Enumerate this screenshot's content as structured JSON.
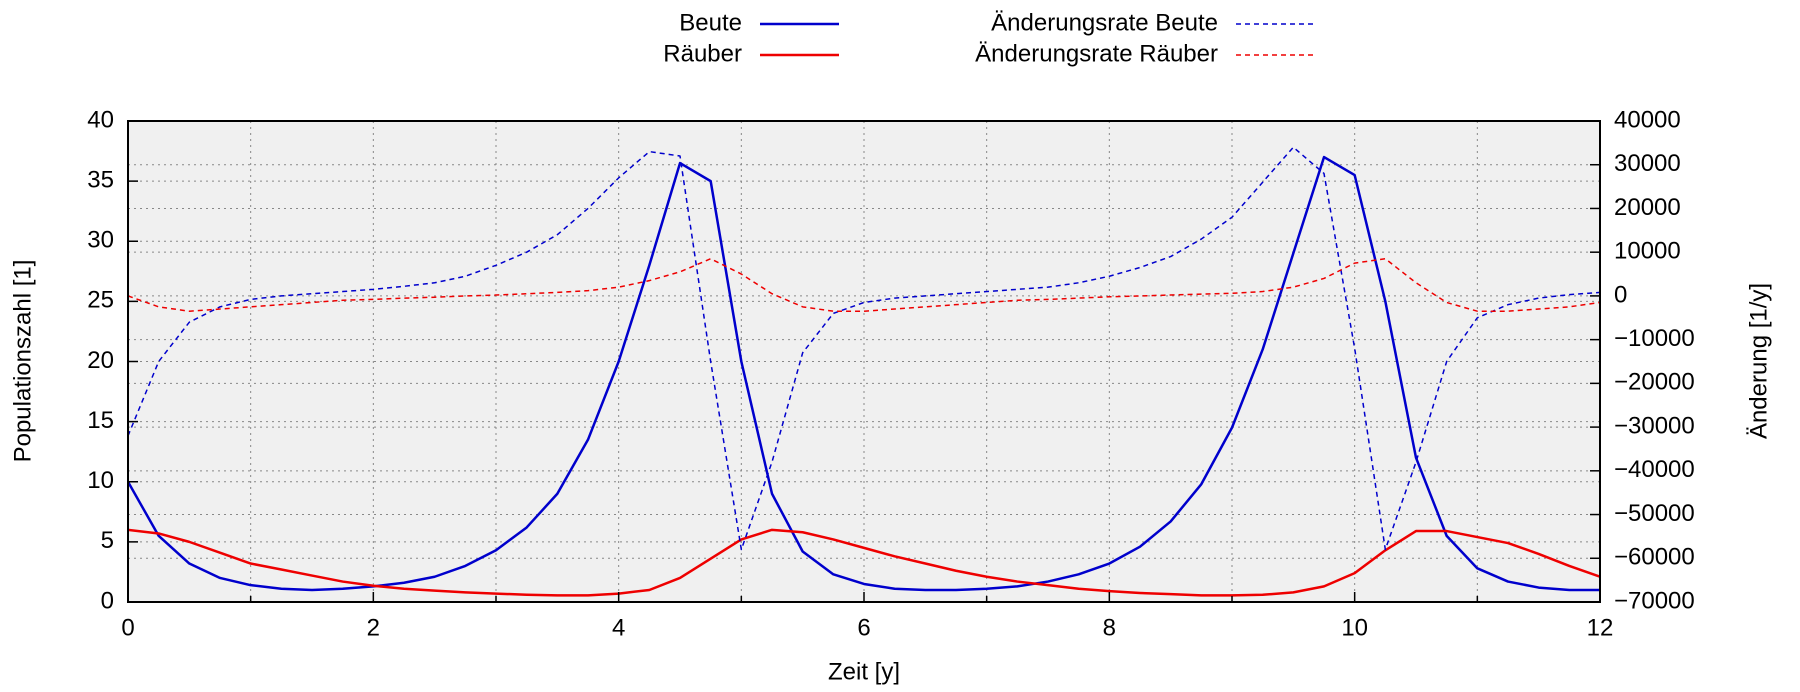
{
  "chart_data": {
    "type": "line",
    "xlabel": "Zeit [y]",
    "ylabel": "Populationszahl [1]",
    "y2label": "Änderung [1/y]",
    "x": [
      0,
      0.25,
      0.5,
      0.75,
      1,
      1.25,
      1.5,
      1.75,
      2,
      2.25,
      2.5,
      2.75,
      3,
      3.25,
      3.5,
      3.75,
      4,
      4.25,
      4.5,
      4.75,
      5,
      5.25,
      5.5,
      5.75,
      6,
      6.25,
      6.5,
      6.75,
      7,
      7.25,
      7.5,
      7.75,
      8,
      8.25,
      8.5,
      8.75,
      9,
      9.25,
      9.5,
      9.75,
      10,
      10.25,
      10.5,
      10.75,
      11,
      11.25,
      11.5,
      11.75,
      12
    ],
    "series": [
      {
        "name": "Beute",
        "color": "#0000cc",
        "dashed": false,
        "axis": "y",
        "values": [
          10,
          5.5,
          3.2,
          2.0,
          1.4,
          1.1,
          1.0,
          1.1,
          1.3,
          1.6,
          2.1,
          3.0,
          4.3,
          6.2,
          9.0,
          13.5,
          20,
          28,
          36.5,
          35,
          20,
          9,
          4.2,
          2.3,
          1.5,
          1.1,
          1.0,
          1.0,
          1.1,
          1.3,
          1.7,
          2.3,
          3.2,
          4.6,
          6.7,
          9.8,
          14.5,
          21,
          29,
          37,
          35.5,
          25,
          12,
          5.5,
          2.8,
          1.7,
          1.2,
          1.0,
          1.0
        ]
      },
      {
        "name": "Räuber",
        "color": "#ee0000",
        "dashed": false,
        "axis": "y",
        "values": [
          6.0,
          5.7,
          5.0,
          4.1,
          3.2,
          2.7,
          2.2,
          1.7,
          1.35,
          1.1,
          0.95,
          0.8,
          0.7,
          0.6,
          0.55,
          0.55,
          0.7,
          1.0,
          2.0,
          3.6,
          5.2,
          6.0,
          5.8,
          5.2,
          4.5,
          3.8,
          3.2,
          2.6,
          2.1,
          1.7,
          1.4,
          1.1,
          0.9,
          0.75,
          0.65,
          0.55,
          0.55,
          0.6,
          0.8,
          1.3,
          2.4,
          4.3,
          5.9,
          5.9,
          5.4,
          4.9,
          4.0,
          3.0,
          2.1
        ]
      },
      {
        "name": "Änderungsrate Beute",
        "color": "#0000cc",
        "dashed": true,
        "axis": "y2",
        "values": [
          -32000,
          -15000,
          -6000,
          -2500,
          -800,
          0,
          500,
          1000,
          1500,
          2200,
          3000,
          4500,
          7000,
          10000,
          14000,
          20000,
          27000,
          33000,
          32000,
          -15000,
          -58000,
          -38000,
          -13000,
          -4000,
          -1500,
          -500,
          0,
          500,
          1000,
          1500,
          2000,
          3000,
          4500,
          6500,
          9000,
          13000,
          18000,
          26000,
          34000,
          28000,
          -12000,
          -58000,
          -38000,
          -15000,
          -5000,
          -2000,
          -500,
          300,
          800
        ]
      },
      {
        "name": "Änderungsrate Räuber",
        "color": "#ee0000",
        "dashed": true,
        "axis": "y2",
        "values": [
          0,
          -2500,
          -3500,
          -3000,
          -2500,
          -2000,
          -1500,
          -1000,
          -800,
          -500,
          -300,
          0,
          200,
          500,
          800,
          1200,
          2000,
          3500,
          5500,
          8500,
          5000,
          500,
          -2500,
          -3500,
          -3500,
          -3000,
          -2500,
          -2000,
          -1500,
          -1000,
          -800,
          -500,
          -200,
          0,
          200,
          400,
          600,
          1000,
          2000,
          4000,
          7500,
          8500,
          3000,
          -1500,
          -3500,
          -3500,
          -3000,
          -2500,
          -1500
        ]
      }
    ],
    "xlim": [
      0,
      12
    ],
    "xticks": [
      0,
      2,
      4,
      6,
      8,
      10,
      12
    ],
    "xminorticks": [
      1,
      3,
      5,
      7,
      9,
      11
    ],
    "ylim": [
      0,
      40
    ],
    "yticks": [
      0,
      5,
      10,
      15,
      20,
      25,
      30,
      35,
      40
    ],
    "y2lim": [
      -70000,
      40000
    ],
    "y2ticks": [
      {
        "value": -70000,
        "label": "−70000"
      },
      {
        "value": -60000,
        "label": "−60000"
      },
      {
        "value": -50000,
        "label": "−50000"
      },
      {
        "value": -40000,
        "label": "−40000"
      },
      {
        "value": -30000,
        "label": "−30000"
      },
      {
        "value": -20000,
        "label": "−20000"
      },
      {
        "value": -10000,
        "label": "−10000"
      },
      0,
      10000,
      20000,
      30000,
      40000
    ],
    "grid": true,
    "legend": "top"
  }
}
